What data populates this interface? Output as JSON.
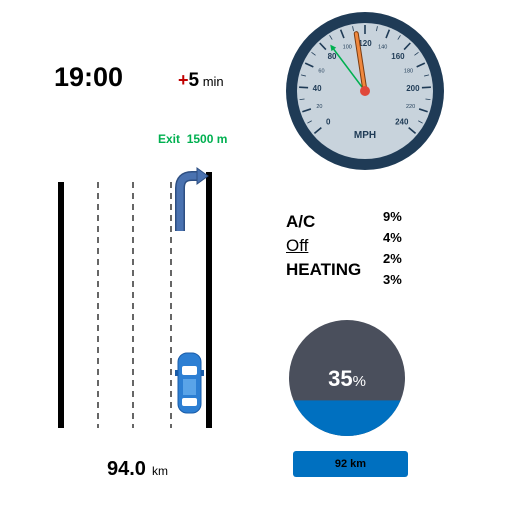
{
  "clock": {
    "time": "19:00"
  },
  "delay": {
    "sign": "+",
    "value": "5",
    "unit": "min"
  },
  "navigation": {
    "exit_label": "Exit",
    "exit_distance": "1500 m",
    "remaining_distance": "94.0",
    "remaining_unit": "km"
  },
  "speedometer": {
    "unit_label": "MPH",
    "major_ticks": [
      "0",
      "40",
      "80",
      "120",
      "160",
      "200",
      "240"
    ],
    "minor_ticks": [
      "20",
      "60",
      "100",
      "140",
      "180",
      "220"
    ],
    "current_speed_mph": 112,
    "target_speed_mph": 86
  },
  "climate": {
    "labels": [
      "A/C",
      "Off",
      "HEATING"
    ],
    "percentages": [
      "9%",
      "4%",
      "2%",
      "3%"
    ]
  },
  "fuel": {
    "level_value": "35",
    "level_unit": "%",
    "level_fraction": 0.35,
    "range_label": "92 km"
  },
  "colors": {
    "gauge_bezel": "#1f3b56",
    "gauge_face": "#c8d3dc",
    "needle": "#f0883e",
    "target_needle": "#00b050",
    "fuel_fill": "#0070c0",
    "fuel_empty": "#4a4f5c",
    "exit_text": "#00b050",
    "delay_sign": "#c00000",
    "arrow": "#4a72b0"
  },
  "icons": [
    "turn-right-arrow-icon",
    "car-icon"
  ]
}
